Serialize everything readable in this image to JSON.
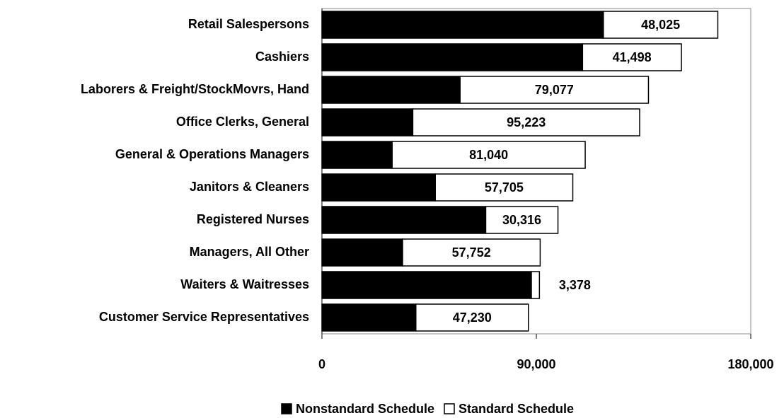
{
  "chart_data": {
    "type": "stacked_bar_horizontal",
    "categories": [
      "Retail Salespersons",
      "Cashiers",
      "Laborers & Freight/StockMovrs, Hand",
      "Office Clerks, General",
      "General & Operations Managers",
      "Janitors & Cleaners",
      "Registered Nurses",
      "Managers, All Other",
      "Waiters & Waitresses",
      "Customer Service Representatives"
    ],
    "series": [
      {
        "name": "Nonstandard Schedule",
        "color": "#000000",
        "values": [
          118150,
          109403,
          57989,
          38142,
          29469,
          47597,
          68757,
          33854,
          87915,
          39430
        ],
        "value_labels": [
          "118,150",
          "109,403",
          "57,989",
          "38,142",
          "29,469",
          "47,597",
          "68,757",
          "33,854",
          "87,915",
          "39,430"
        ]
      },
      {
        "name": "Standard Schedule",
        "color": "#ffffff",
        "values": [
          48025,
          41498,
          79077,
          95223,
          81040,
          57705,
          30316,
          57752,
          3378,
          47230
        ],
        "value_labels": [
          "48,025",
          "41,498",
          "79,077",
          "95,223",
          "81,040",
          "57,705",
          "30,316",
          "57,752",
          "3,378",
          "47,230"
        ]
      }
    ],
    "xlim": [
      0,
      180000
    ],
    "xticks": [
      0,
      {
        "value": 90000,
        "label": "90,000"
      },
      {
        "value": 180000,
        "label": "180,000"
      }
    ],
    "legend": "bottom"
  }
}
